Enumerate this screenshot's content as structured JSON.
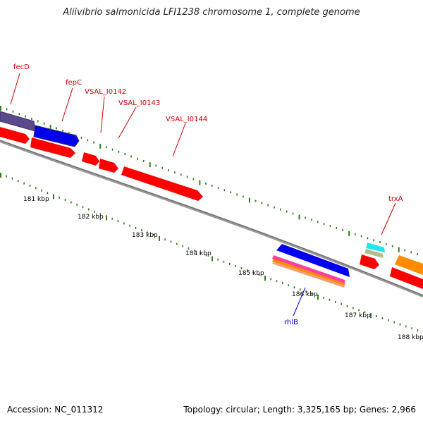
{
  "title": "Aliivibrio salmonicida LFI1238 chromosome 1, complete genome",
  "footer": {
    "accession": "Accession: NC_011312",
    "summary": "Topology: circular; Length: 3,325,165 bp; Genes: 2,966"
  },
  "colors": {
    "label_red": "#cc0000",
    "label_blue": "#0000cc",
    "tick_green": "#2e7d1a",
    "backbone": "#888888",
    "cds_red": "#ff0000",
    "cds_blue": "#0000ee",
    "cds_purple": "#5a4a8c",
    "cyan": "#22e6e6",
    "tan": "#b9b98a",
    "orange": "#ff8c00",
    "pink": "#ff3ea0"
  },
  "kbp_labels": [
    "181 kbp",
    "182 kbp",
    "183 kbp",
    "184 kbp",
    "185 kbp",
    "186 kbp",
    "187 kbp",
    "188 kbp"
  ],
  "gene_labels": [
    {
      "name": "fecD",
      "color": "red"
    },
    {
      "name": "fepC",
      "color": "red"
    },
    {
      "name": "VSAL_I0142",
      "color": "red"
    },
    {
      "name": "VSAL_I0143",
      "color": "red"
    },
    {
      "name": "VSAL_I0144",
      "color": "red"
    },
    {
      "name": "trxA",
      "color": "red"
    },
    {
      "name": "rhlB",
      "color": "blue"
    }
  ]
}
